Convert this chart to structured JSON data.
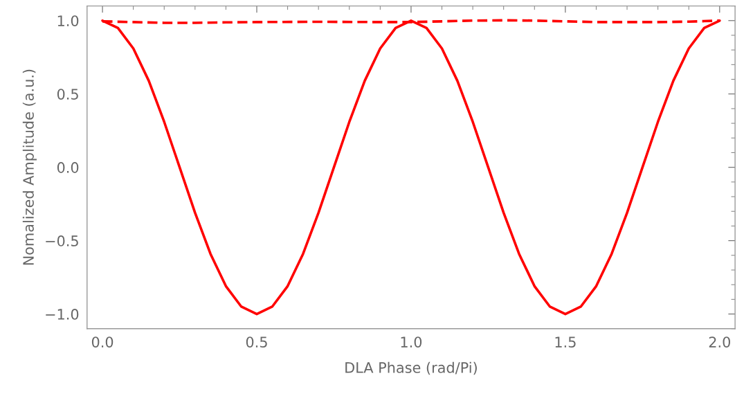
{
  "chart_data": {
    "type": "line",
    "xlabel": "DLA Phase (rad/Pi)",
    "ylabel": "Nomalized Amplitude (a.u.)",
    "xlim": [
      -0.05,
      2.05
    ],
    "ylim": [
      -1.1,
      1.1
    ],
    "xticks": [
      {
        "value": 0,
        "label": "0.0"
      },
      {
        "value": 0.1,
        "label": null
      },
      {
        "value": 0.2,
        "label": null
      },
      {
        "value": 0.3,
        "label": null
      },
      {
        "value": 0.4,
        "label": null
      },
      {
        "value": 0.5,
        "label": "0.5"
      },
      {
        "value": 0.6,
        "label": null
      },
      {
        "value": 0.7,
        "label": null
      },
      {
        "value": 0.8,
        "label": null
      },
      {
        "value": 0.9,
        "label": null
      },
      {
        "value": 1,
        "label": "1.0"
      },
      {
        "value": 1.1,
        "label": null
      },
      {
        "value": 1.2,
        "label": null
      },
      {
        "value": 1.3,
        "label": null
      },
      {
        "value": 1.4,
        "label": null
      },
      {
        "value": 1.5,
        "label": "1.5"
      },
      {
        "value": 1.6,
        "label": null
      },
      {
        "value": 1.7,
        "label": null
      },
      {
        "value": 1.8,
        "label": null
      },
      {
        "value": 1.9,
        "label": null
      },
      {
        "value": 2,
        "label": "2.0"
      }
    ],
    "yticks": [
      {
        "value": -1.1,
        "label": null
      },
      {
        "value": -1,
        "label": "−1.0"
      },
      {
        "value": -0.9,
        "label": null
      },
      {
        "value": -0.8,
        "label": null
      },
      {
        "value": -0.7,
        "label": null
      },
      {
        "value": -0.6,
        "label": null
      },
      {
        "value": -0.5,
        "label": "−0.5"
      },
      {
        "value": -0.4,
        "label": null
      },
      {
        "value": -0.3,
        "label": null
      },
      {
        "value": -0.2,
        "label": null
      },
      {
        "value": -0.1,
        "label": null
      },
      {
        "value": 0,
        "label": "0.0"
      },
      {
        "value": 0.1,
        "label": null
      },
      {
        "value": 0.2,
        "label": null
      },
      {
        "value": 0.3,
        "label": null
      },
      {
        "value": 0.4,
        "label": null
      },
      {
        "value": 0.5,
        "label": "0.5"
      },
      {
        "value": 0.6,
        "label": null
      },
      {
        "value": 0.7,
        "label": null
      },
      {
        "value": 0.8,
        "label": null
      },
      {
        "value": 0.9,
        "label": null
      },
      {
        "value": 1,
        "label": "1.0"
      },
      {
        "value": 1.1,
        "label": null
      }
    ],
    "grid": false,
    "marker": "none",
    "series": [
      {
        "color": "#ff0000",
        "line_style": "solid",
        "x": [
          0,
          0.05,
          0.1,
          0.15,
          0.2,
          0.25,
          0.3,
          0.35,
          0.4,
          0.45,
          0.5,
          0.55,
          0.6,
          0.65,
          0.7,
          0.75,
          0.8,
          0.85,
          0.9,
          0.95,
          1,
          1.05,
          1.1,
          1.15,
          1.2,
          1.25,
          1.3,
          1.35,
          1.4,
          1.45,
          1.5,
          1.55,
          1.6,
          1.65,
          1.7,
          1.75,
          1.8,
          1.85,
          1.9,
          1.95,
          2
        ],
        "values": [
          1,
          0.95,
          0.81,
          0.59,
          0.31,
          0,
          -0.31,
          -0.59,
          -0.81,
          -0.95,
          -1,
          -0.95,
          -0.81,
          -0.59,
          -0.31,
          0,
          0.31,
          0.59,
          0.81,
          0.95,
          1,
          0.95,
          0.81,
          0.59,
          0.31,
          0,
          -0.31,
          -0.59,
          -0.81,
          -0.95,
          -1,
          -0.95,
          -0.81,
          -0.59,
          -0.31,
          0,
          0.31,
          0.59,
          0.81,
          0.95,
          1
        ]
      },
      {
        "color": "#ff0000",
        "line_style": "dashed",
        "x": [
          0,
          0.1,
          0.2,
          0.3,
          0.4,
          0.5,
          0.7,
          0.9,
          1,
          1.1,
          1.2,
          1.3,
          1.4,
          1.5,
          1.6,
          1.7,
          1.8,
          1.9,
          2
        ],
        "values": [
          0.995,
          0.99,
          0.985,
          0.985,
          0.988,
          0.99,
          0.992,
          0.99,
          0.99,
          0.995,
          1.0,
          1.002,
          1.0,
          0.995,
          0.99,
          0.99,
          0.99,
          0.993,
          1.0
        ]
      }
    ]
  }
}
